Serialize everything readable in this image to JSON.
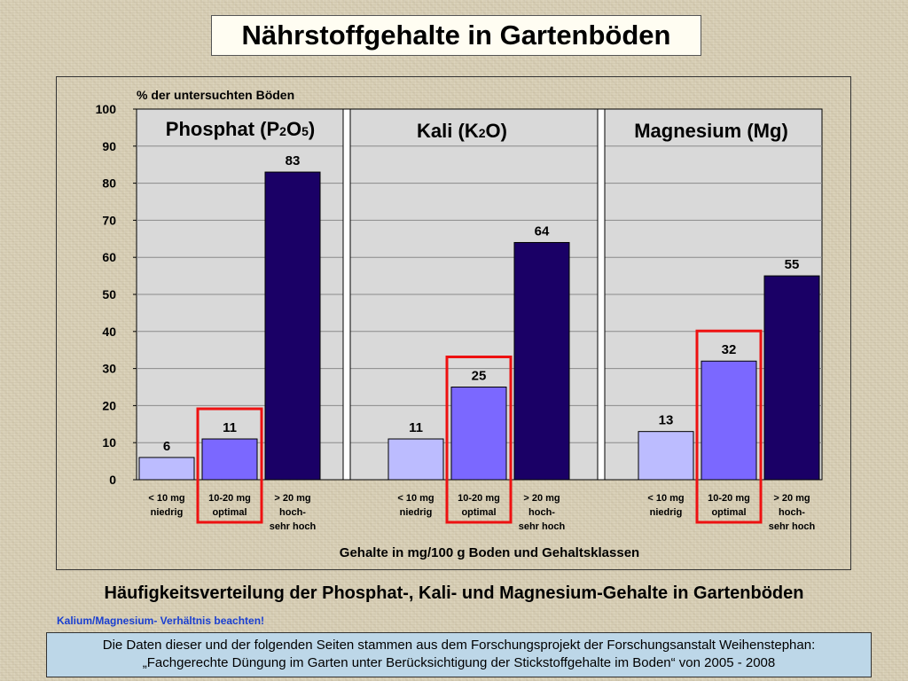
{
  "page_title": "Nährstoffgehalte in Gartenböden",
  "caption": "Häufigkeitsverteilung der Phosphat-, Kali- und Magnesium-Gehalte in Gartenböden",
  "note": "Kalium/Magnesium- Verhältnis beachten!",
  "source_lines": [
    "Die Daten dieser und der folgenden Seiten stammen aus dem Forschungsprojekt der Forschungsanstalt Weihenstephan:",
    "„Fachgerechte Düngung im Garten unter Berücksichtigung der Stickstoffgehalte im Boden“ von 2005 - 2008"
  ],
  "chart_data": {
    "type": "bar",
    "ylabel": "% der untersuchten Böden",
    "xlabel": "Gehalte in mg/100 g Boden und Gehaltsklassen",
    "ylim": [
      0,
      100
    ],
    "yticks": [
      0,
      10,
      20,
      30,
      40,
      50,
      60,
      70,
      80,
      90,
      100
    ],
    "grid": true,
    "categories": [
      [
        "< 10 mg",
        "niedrig"
      ],
      [
        "10-20 mg",
        "optimal"
      ],
      [
        "> 20 mg",
        "hoch-",
        "sehr hoch"
      ]
    ],
    "category_colors": [
      "#bcbcff",
      "#7b68ff",
      "#1a0066"
    ],
    "highlight_category": 1,
    "highlight_color": "#ee1111",
    "plot_background": "#d9d9d9",
    "groups": [
      {
        "name": "Phosphat (P",
        "sub": "2",
        "name2": "O",
        "sub2": "5",
        "name3": ")",
        "values": [
          6,
          11,
          83
        ]
      },
      {
        "name": "Kali (K",
        "sub": "2",
        "name2": "O)",
        "sub2": "",
        "name3": "",
        "values": [
          11,
          25,
          64
        ]
      },
      {
        "name": "Magnesium (Mg)",
        "sub": "",
        "name2": "",
        "sub2": "",
        "name3": "",
        "values": [
          13,
          32,
          55
        ]
      }
    ]
  }
}
